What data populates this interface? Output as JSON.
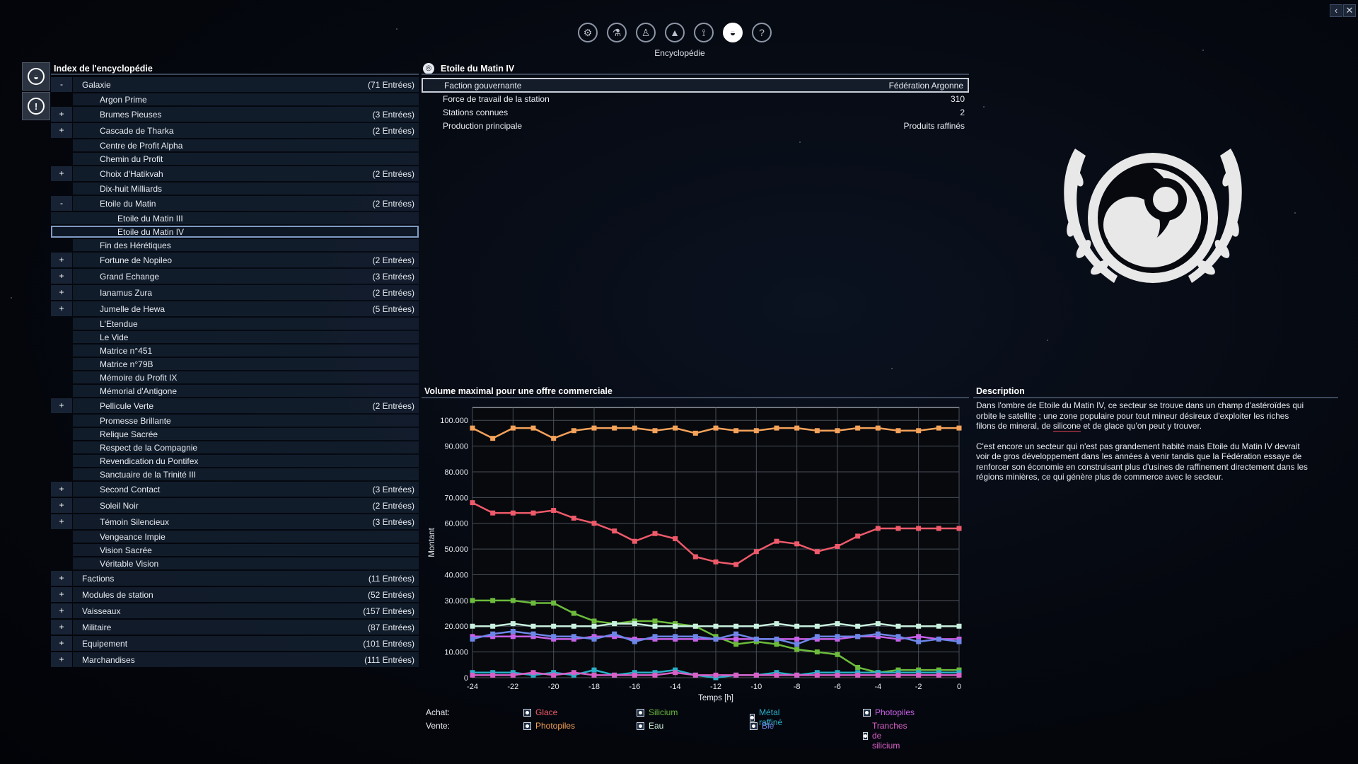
{
  "window": {
    "close_label": "✕",
    "back_label": "‹"
  },
  "topbar": {
    "icons": [
      {
        "name": "settings-icon",
        "glyph": "⚙"
      },
      {
        "name": "flask-icon",
        "glyph": "⚗"
      },
      {
        "name": "person-icon",
        "glyph": "♙"
      },
      {
        "name": "ship-icon",
        "glyph": "▲"
      },
      {
        "name": "map-icon",
        "glyph": "⟟"
      },
      {
        "name": "encyclopedia-icon",
        "glyph": "◒"
      },
      {
        "name": "help-icon",
        "glyph": "?"
      }
    ],
    "active_label": "Encyclopédie"
  },
  "index": {
    "title": "Index de l'encyclopédie",
    "rows": [
      {
        "toggle": "-",
        "label": "Galaxie",
        "count": "(71 Entrées)",
        "level": 0
      },
      {
        "toggle": "",
        "label": "Argon Prime",
        "count": "",
        "level": 1
      },
      {
        "toggle": "+",
        "label": "Brumes Pieuses",
        "count": "(3 Entrées)",
        "level": 1
      },
      {
        "toggle": "+",
        "label": "Cascade de Tharka",
        "count": "(2 Entrées)",
        "level": 1
      },
      {
        "toggle": "",
        "label": "Centre de Profit Alpha",
        "count": "",
        "level": 1
      },
      {
        "toggle": "",
        "label": "Chemin du Profit",
        "count": "",
        "level": 1
      },
      {
        "toggle": "+",
        "label": "Choix d'Hatikvah",
        "count": "(2 Entrées)",
        "level": 1
      },
      {
        "toggle": "",
        "label": "Dix-huit Milliards",
        "count": "",
        "level": 1
      },
      {
        "toggle": "-",
        "label": "Etoile du Matin",
        "count": "(2 Entrées)",
        "level": 1
      },
      {
        "toggle": "",
        "label": "Etoile du Matin III",
        "count": "",
        "level": 2
      },
      {
        "toggle": "",
        "label": "Etoile du Matin IV",
        "count": "",
        "level": 2,
        "selected": true
      },
      {
        "toggle": "",
        "label": "Fin des Hérétiques",
        "count": "",
        "level": 1
      },
      {
        "toggle": "+",
        "label": "Fortune de Nopileo",
        "count": "(2 Entrées)",
        "level": 1
      },
      {
        "toggle": "+",
        "label": "Grand Echange",
        "count": "(3 Entrées)",
        "level": 1
      },
      {
        "toggle": "+",
        "label": "Ianamus Zura",
        "count": "(2 Entrées)",
        "level": 1
      },
      {
        "toggle": "+",
        "label": "Jumelle de Hewa",
        "count": "(5 Entrées)",
        "level": 1
      },
      {
        "toggle": "",
        "label": "L'Etendue",
        "count": "",
        "level": 1
      },
      {
        "toggle": "",
        "label": "Le Vide",
        "count": "",
        "level": 1
      },
      {
        "toggle": "",
        "label": "Matrice n°451",
        "count": "",
        "level": 1
      },
      {
        "toggle": "",
        "label": "Matrice n°79B",
        "count": "",
        "level": 1
      },
      {
        "toggle": "",
        "label": "Mémoire du Profit IX",
        "count": "",
        "level": 1
      },
      {
        "toggle": "",
        "label": "Mémorial d'Antigone",
        "count": "",
        "level": 1
      },
      {
        "toggle": "+",
        "label": "Pellicule Verte",
        "count": "(2 Entrées)",
        "level": 1
      },
      {
        "toggle": "",
        "label": "Promesse Brillante",
        "count": "",
        "level": 1
      },
      {
        "toggle": "",
        "label": "Relique Sacrée",
        "count": "",
        "level": 1
      },
      {
        "toggle": "",
        "label": "Respect de la Compagnie",
        "count": "",
        "level": 1
      },
      {
        "toggle": "",
        "label": "Revendication du Pontifex",
        "count": "",
        "level": 1
      },
      {
        "toggle": "",
        "label": "Sanctuaire de la Trinité III",
        "count": "",
        "level": 1
      },
      {
        "toggle": "+",
        "label": "Second Contact",
        "count": "(3 Entrées)",
        "level": 1
      },
      {
        "toggle": "+",
        "label": "Soleil Noir",
        "count": "(2 Entrées)",
        "level": 1
      },
      {
        "toggle": "+",
        "label": "Témoin Silencieux",
        "count": "(3 Entrées)",
        "level": 1
      },
      {
        "toggle": "",
        "label": "Vengeance Impie",
        "count": "",
        "level": 1
      },
      {
        "toggle": "",
        "label": "Vision Sacrée",
        "count": "",
        "level": 1
      },
      {
        "toggle": "",
        "label": "Véritable Vision",
        "count": "",
        "level": 1
      },
      {
        "toggle": "+",
        "label": "Factions",
        "count": "(11 Entrées)",
        "level": 0
      },
      {
        "toggle": "+",
        "label": "Modules de station",
        "count": "(52 Entrées)",
        "level": 0
      },
      {
        "toggle": "+",
        "label": "Vaisseaux",
        "count": "(157 Entrées)",
        "level": 0
      },
      {
        "toggle": "+",
        "label": "Militaire",
        "count": "(87 Entrées)",
        "level": 0
      },
      {
        "toggle": "+",
        "label": "Equipement",
        "count": "(101 Entrées)",
        "level": 0
      },
      {
        "toggle": "+",
        "label": "Marchandises",
        "count": "(111 Entrées)",
        "level": 0
      }
    ]
  },
  "detail": {
    "title": "Etoile du Matin IV",
    "properties": [
      {
        "key": "Faction gouvernante",
        "value": "Fédération Argonne"
      },
      {
        "key": "Force de travail de la station",
        "value": "310"
      },
      {
        "key": "Stations connues",
        "value": "2"
      },
      {
        "key": "Production principale",
        "value": "Produits raffinés"
      }
    ]
  },
  "description": {
    "title": "Description",
    "p1_before": "Dans l'ombre de Etoile du Matin IV, ce secteur se trouve dans un champ d'astéroïdes qui orbite le satellite ; une zone populaire pour tout mineur désireux d'exploiter les riches filons de mineral, de ",
    "p1_highlight": "silicone",
    "p1_after": " et de glace qu'on peut y trouver.",
    "p2": "C'est encore un secteur qui n'est pas  grandement habité mais Etoile du Matin IV devrait voir de gros développement dans les années à venir tandis que la Fédération essaye de renforcer son économie en construisant plus d'usines de raffinement directement dans les régions minières, ce qui génère plus de commerce avec le secteur."
  },
  "chart_data": {
    "type": "line",
    "title": "Volume maximal pour une offre commerciale",
    "xlabel": "Temps [h]",
    "ylabel": "Montant",
    "xlim": [
      -24,
      0
    ],
    "ylim": [
      0,
      105000
    ],
    "xticks": [
      "-24",
      "-22",
      "-20",
      "-18",
      "-16",
      "-14",
      "-12",
      "-10",
      "-8",
      "-6",
      "-4",
      "-2",
      "0"
    ],
    "yticks": [
      "0",
      "10.000",
      "20.000",
      "30.000",
      "40.000",
      "50.000",
      "60.000",
      "70.000",
      "80.000",
      "90.000",
      "100.000"
    ],
    "x": [
      -24,
      -23,
      -22,
      -21,
      -20,
      -19,
      -18,
      -17,
      -16,
      -15,
      -14,
      -13,
      -12,
      -11,
      -10,
      -9,
      -8,
      -7,
      -6,
      -5,
      -4,
      -3,
      -2,
      -1,
      0
    ],
    "grid": true,
    "series": [
      {
        "name": "Photopiles",
        "group": "Vente",
        "color": "#f5a25a",
        "values": [
          97000,
          93000,
          97000,
          97000,
          93000,
          96000,
          97000,
          97000,
          97000,
          96000,
          97000,
          95000,
          97000,
          96000,
          96000,
          97000,
          97000,
          96000,
          96000,
          97000,
          97000,
          96000,
          96000,
          97000,
          97000
        ]
      },
      {
        "name": "Glace",
        "group": "Achat",
        "color": "#ee5a6a",
        "values": [
          68000,
          64000,
          64000,
          64000,
          65000,
          62000,
          60000,
          57000,
          53000,
          56000,
          54000,
          47000,
          45000,
          44000,
          49000,
          53000,
          52000,
          49000,
          51000,
          55000,
          58000,
          58000,
          58000,
          58000,
          58000
        ]
      },
      {
        "name": "Silicium",
        "group": "Achat",
        "color": "#6cbb3c",
        "values": [
          30000,
          30000,
          30000,
          29000,
          29000,
          25000,
          22000,
          21000,
          22000,
          22000,
          21000,
          20000,
          16000,
          13000,
          14000,
          13000,
          11000,
          10000,
          9000,
          4000,
          2000,
          3000,
          3000,
          3000,
          3000
        ]
      },
      {
        "name": "Eau",
        "group": "Vente",
        "color": "#c9f1df",
        "values": [
          20000,
          20000,
          21000,
          20000,
          20000,
          20000,
          20000,
          21000,
          21000,
          20000,
          20000,
          20000,
          20000,
          20000,
          20000,
          21000,
          20000,
          20000,
          21000,
          20000,
          21000,
          20000,
          20000,
          20000,
          20000
        ]
      },
      {
        "name": "Photopiles",
        "group": "Achat",
        "color": "#c860e8",
        "values": [
          16000,
          16000,
          16000,
          16000,
          15000,
          15000,
          16000,
          16000,
          15000,
          15000,
          15000,
          15000,
          15000,
          15000,
          15000,
          15000,
          15000,
          15000,
          15000,
          16000,
          16000,
          15000,
          16000,
          15000,
          15000
        ]
      },
      {
        "name": "Blé",
        "group": "Vente",
        "color": "#6d86e8",
        "values": [
          15000,
          17000,
          18000,
          17000,
          16000,
          16000,
          15000,
          17000,
          14000,
          16000,
          16000,
          16000,
          15000,
          17000,
          15000,
          15000,
          13000,
          16000,
          16000,
          16000,
          17000,
          16000,
          14000,
          15000,
          14000
        ]
      },
      {
        "name": "Métal raffiné",
        "group": "Achat",
        "color": "#2ab0c8",
        "values": [
          2000,
          2000,
          2000,
          1000,
          2000,
          1000,
          3000,
          1000,
          2000,
          2000,
          3000,
          1000,
          0,
          1000,
          1000,
          2000,
          1000,
          2000,
          2000,
          2000,
          2000,
          2000,
          2000,
          2000,
          2000
        ]
      },
      {
        "name": "Tranches de silicium",
        "group": "Vente",
        "color": "#d860c8",
        "values": [
          1000,
          1000,
          1000,
          2000,
          1000,
          2000,
          1000,
          1000,
          1000,
          1000,
          2000,
          1000,
          1000,
          1000,
          1000,
          1000,
          1000,
          1000,
          1000,
          1000,
          1000,
          1000,
          1000,
          1000,
          1000
        ]
      }
    ]
  },
  "legend": {
    "achat_label": "Achat:",
    "vente_label": "Vente:",
    "achat": [
      {
        "label": "Glace",
        "color": "#ee5a6a"
      },
      {
        "label": "Silicium",
        "color": "#6cbb3c"
      },
      {
        "label": "Métal raffiné",
        "color": "#2ab0c8"
      },
      {
        "label": "Photopiles",
        "color": "#c860e8"
      }
    ],
    "vente": [
      {
        "label": "Photopiles",
        "color": "#f5a25a"
      },
      {
        "label": "Eau",
        "color": "#c9f1df"
      },
      {
        "label": "Blé",
        "color": "#6d86e8"
      },
      {
        "label": "Tranches de silicium",
        "color": "#d860c8"
      }
    ]
  }
}
